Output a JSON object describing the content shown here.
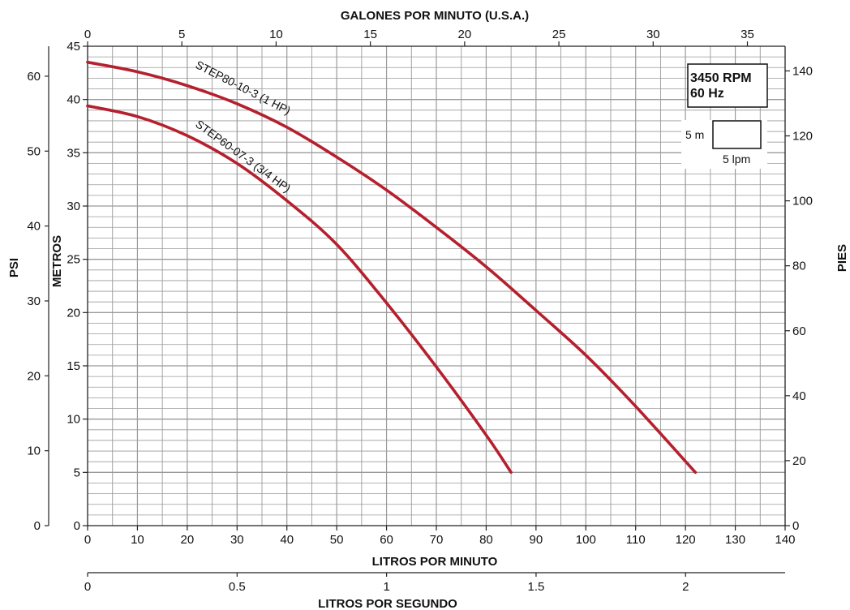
{
  "chart_data": {
    "type": "line",
    "x_top": {
      "label": "GALONES POR MINUTO (U.S.A.)",
      "range": [
        0,
        37
      ],
      "ticks": [
        0,
        5,
        10,
        15,
        20,
        25,
        30,
        35
      ]
    },
    "x_bottom": {
      "label": "LITROS POR MINUTO",
      "range": [
        0,
        140
      ],
      "ticks": [
        0,
        10,
        20,
        30,
        40,
        50,
        60,
        70,
        80,
        90,
        100,
        110,
        120,
        130,
        140
      ]
    },
    "x_bottom2": {
      "label": "LITROS POR SEGUNDO",
      "range": [
        0,
        2.333
      ],
      "ticks": [
        "0",
        "0.5",
        "1",
        "1.5",
        "2"
      ],
      "tick_values": [
        0,
        0.5,
        1,
        1.5,
        2
      ]
    },
    "y_metros": {
      "label": "METROS",
      "range": [
        0,
        45
      ],
      "ticks": [
        0,
        5,
        10,
        15,
        20,
        25,
        30,
        35,
        40,
        45
      ]
    },
    "y_psi": {
      "label": "PSI",
      "range": [
        0,
        64
      ],
      "ticks": [
        0,
        10,
        20,
        30,
        40,
        50,
        60
      ]
    },
    "y_pies": {
      "label": "PIES",
      "range": [
        0,
        147.6
      ],
      "ticks": [
        0,
        20,
        40,
        60,
        80,
        100,
        120,
        140
      ]
    },
    "grid": true,
    "series": [
      {
        "name": "STEP80-10-3  (1 HP)",
        "x_lpm": [
          0,
          10,
          20,
          30,
          40,
          50,
          60,
          70,
          80,
          90,
          100,
          110,
          122
        ],
        "y_m": [
          43.5,
          42.6,
          41.3,
          39.6,
          37.4,
          34.6,
          31.5,
          28.0,
          24.3,
          20.2,
          16.0,
          11.2,
          5.0
        ]
      },
      {
        "name": "STEP60-07-3  (3/4 HP)",
        "x_lpm": [
          0,
          10,
          20,
          30,
          40,
          50,
          60,
          70,
          80,
          85
        ],
        "y_m": [
          39.4,
          38.4,
          36.6,
          34.0,
          30.5,
          26.4,
          20.9,
          14.9,
          8.5,
          5.0
        ]
      }
    ],
    "annotations": {
      "speed_line1": "3450 RPM",
      "speed_line2": "60 Hz",
      "scale_m": "5 m",
      "scale_lpm": "5 lpm"
    }
  },
  "colors": {
    "curve": "#b5202e",
    "grid": "#9a9a9a",
    "axis": "#222222"
  }
}
